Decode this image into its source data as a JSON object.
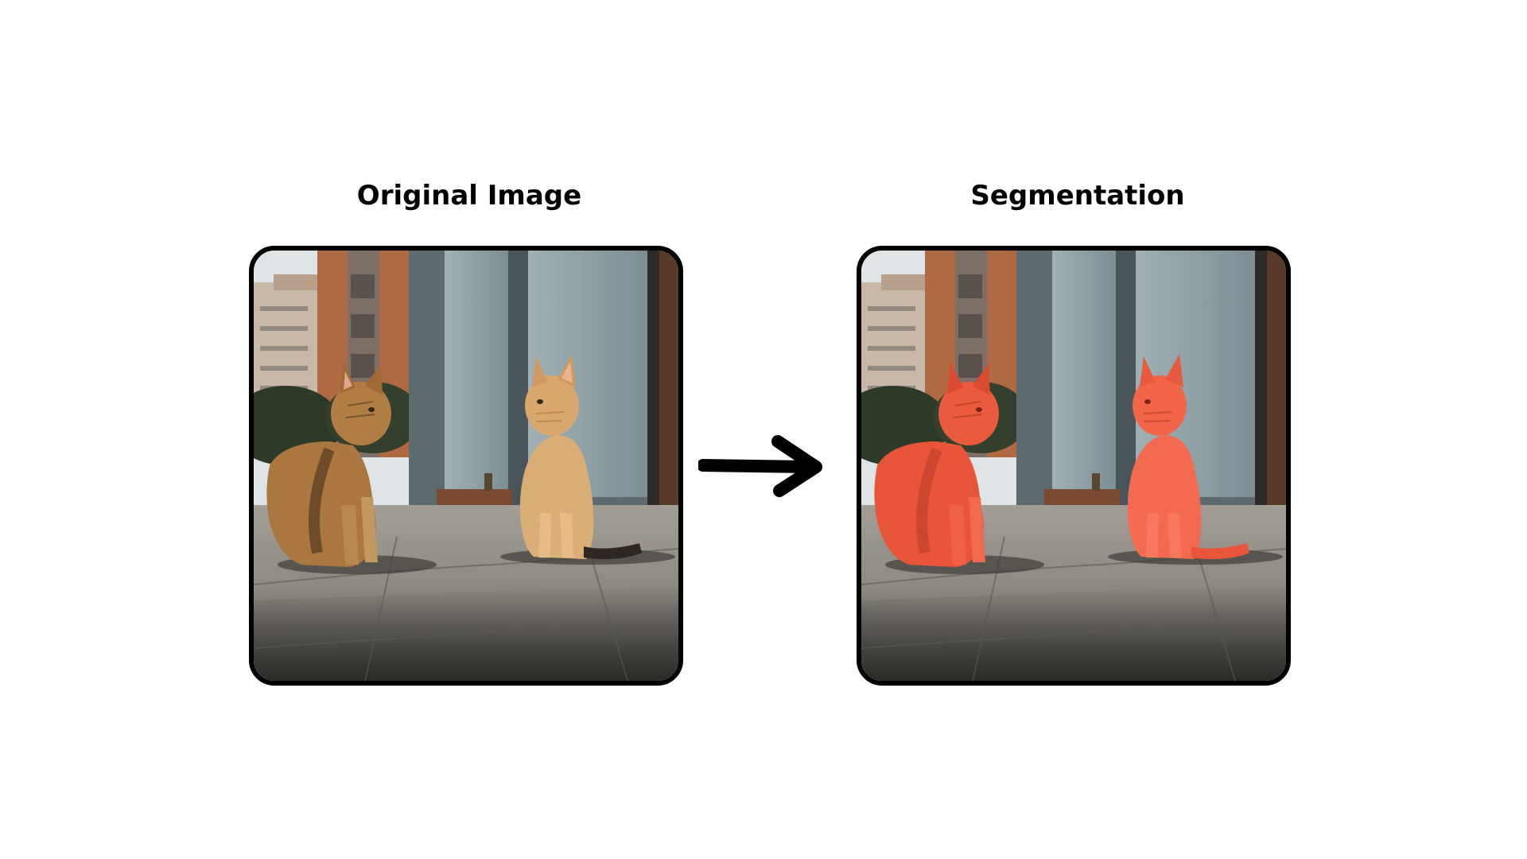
{
  "panels": {
    "left": {
      "title": "Original Image"
    },
    "right": {
      "title": "Segmentation"
    }
  },
  "colors": {
    "frame_border": "#000000",
    "arrow": "#000000",
    "cat_tabby": "#a9773f",
    "cat_ginger": "#dcae77",
    "mask_overlay": "#ff5a3c",
    "pavement": "#8e8b84",
    "building_glass": "#8fa3a8",
    "brick_building": "#b06a43"
  },
  "icons": {
    "arrow": "arrow-right-icon"
  }
}
